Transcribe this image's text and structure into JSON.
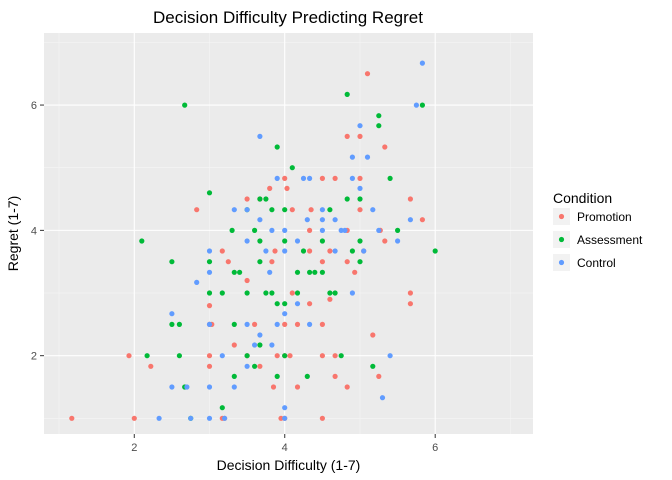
{
  "chart_data": {
    "type": "scatter",
    "title": "Decision Difficulty Predicting Regret",
    "xlabel": "Decision Difficulty (1-7)",
    "ylabel": "Regret (1-7)",
    "xlim": [
      0.8,
      7.3
    ],
    "ylim": [
      0.75,
      7.15
    ],
    "xticks": [
      2,
      4,
      6
    ],
    "yticks": [
      2,
      4,
      6
    ],
    "grid": true,
    "legend": {
      "title": "Condition",
      "position": "right"
    },
    "series": [
      {
        "name": "Promotion",
        "color": "#F8766D",
        "points": [
          [
            1.17,
            1.0
          ],
          [
            2.0,
            1.0
          ],
          [
            1.93,
            2.0
          ],
          [
            2.22,
            1.83
          ],
          [
            2.83,
            4.33
          ],
          [
            3.0,
            2.8
          ],
          [
            3.0,
            1.83
          ],
          [
            3.0,
            2.0
          ],
          [
            3.03,
            2.5
          ],
          [
            3.17,
            1.0
          ],
          [
            3.2,
            1.0
          ],
          [
            3.25,
            3.5
          ],
          [
            3.33,
            2.17
          ],
          [
            3.5,
            2.0
          ],
          [
            3.5,
            3.2
          ],
          [
            3.67,
            4.5
          ],
          [
            3.67,
            1.83
          ],
          [
            3.8,
            4.67
          ],
          [
            3.85,
            1.5
          ],
          [
            3.87,
            3.67
          ],
          [
            3.9,
            2.0
          ],
          [
            3.95,
            1.0
          ],
          [
            4.0,
            1.0
          ],
          [
            4.0,
            2.0
          ],
          [
            4.0,
            2.5
          ],
          [
            4.0,
            4.83
          ],
          [
            4.03,
            4.67
          ],
          [
            4.07,
            2.0
          ],
          [
            4.1,
            4.33
          ],
          [
            4.1,
            3.0
          ],
          [
            4.17,
            1.5
          ],
          [
            4.33,
            4.0
          ],
          [
            4.33,
            3.67
          ],
          [
            4.33,
            2.83
          ],
          [
            4.5,
            2.0
          ],
          [
            4.5,
            3.5
          ],
          [
            4.5,
            1.0
          ],
          [
            4.5,
            4.83
          ],
          [
            4.6,
            3.67
          ],
          [
            4.67,
            1.67
          ],
          [
            4.67,
            4.83
          ],
          [
            4.67,
            2.0
          ],
          [
            4.83,
            3.5
          ],
          [
            4.83,
            1.5
          ],
          [
            4.83,
            4.0
          ],
          [
            4.83,
            5.5
          ],
          [
            4.93,
            3.33
          ],
          [
            5.0,
            4.83
          ],
          [
            5.0,
            4.33
          ],
          [
            5.0,
            5.5
          ],
          [
            5.05,
            3.67
          ],
          [
            5.1,
            6.5
          ],
          [
            5.17,
            2.33
          ],
          [
            5.25,
            1.67
          ],
          [
            5.33,
            3.83
          ],
          [
            5.33,
            5.33
          ],
          [
            5.67,
            3.0
          ],
          [
            5.67,
            2.83
          ],
          [
            5.83,
            4.17
          ],
          [
            5.67,
            4.5
          ],
          [
            3.5,
            4.5
          ],
          [
            3.17,
            3.67
          ],
          [
            3.0,
            2.5
          ],
          [
            3.83,
            3.5
          ],
          [
            4.35,
            4.33
          ],
          [
            4.6,
            2.9
          ],
          [
            5.27,
            4.0
          ],
          [
            3.6,
            2.5
          ],
          [
            4.17,
            2.5
          ],
          [
            4.5,
            2.5
          ]
        ]
      },
      {
        "name": "Assessment",
        "color": "#00BA38",
        "points": [
          [
            2.1,
            3.83
          ],
          [
            2.17,
            2.0
          ],
          [
            2.5,
            3.5
          ],
          [
            2.6,
            2.5
          ],
          [
            2.6,
            2.0
          ],
          [
            2.67,
            6.0
          ],
          [
            2.67,
            1.5
          ],
          [
            2.75,
            1.0
          ],
          [
            3.0,
            4.6
          ],
          [
            3.0,
            3.0
          ],
          [
            3.17,
            3.0
          ],
          [
            3.17,
            1.17
          ],
          [
            3.33,
            3.33
          ],
          [
            3.33,
            2.5
          ],
          [
            3.33,
            1.67
          ],
          [
            3.4,
            3.33
          ],
          [
            3.5,
            3.0
          ],
          [
            3.5,
            4.33
          ],
          [
            3.6,
            4.0
          ],
          [
            3.67,
            4.5
          ],
          [
            3.67,
            3.83
          ],
          [
            3.67,
            3.5
          ],
          [
            3.67,
            2.17
          ],
          [
            3.75,
            4.5
          ],
          [
            3.83,
            3.0
          ],
          [
            3.83,
            4.33
          ],
          [
            3.9,
            5.33
          ],
          [
            3.9,
            2.83
          ],
          [
            3.9,
            1.67
          ],
          [
            4.0,
            2.83
          ],
          [
            4.0,
            3.83
          ],
          [
            4.0,
            4.33
          ],
          [
            4.1,
            5.0
          ],
          [
            4.17,
            3.33
          ],
          [
            4.17,
            3.0
          ],
          [
            4.25,
            3.67
          ],
          [
            4.3,
            1.67
          ],
          [
            4.33,
            3.33
          ],
          [
            4.4,
            3.33
          ],
          [
            4.5,
            3.83
          ],
          [
            4.5,
            3.33
          ],
          [
            4.6,
            4.33
          ],
          [
            4.67,
            3.0
          ],
          [
            4.83,
            4.5
          ],
          [
            4.83,
            6.17
          ],
          [
            4.9,
            3.67
          ],
          [
            5.0,
            3.83
          ],
          [
            5.0,
            4.5
          ],
          [
            5.17,
            1.83
          ],
          [
            5.25,
            5.83
          ],
          [
            5.25,
            5.67
          ],
          [
            5.4,
            4.83
          ],
          [
            5.5,
            4.0
          ],
          [
            6.0,
            3.67
          ],
          [
            5.83,
            6.0
          ],
          [
            5.0,
            3.5
          ],
          [
            4.75,
            2.0
          ],
          [
            3.6,
            1.83
          ],
          [
            2.5,
            2.5
          ],
          [
            3.0,
            3.5
          ],
          [
            3.75,
            3.0
          ],
          [
            4.0,
            2.0
          ],
          [
            3.3,
            4.0
          ],
          [
            4.6,
            3.0
          ],
          [
            3.5,
            2.0
          ]
        ]
      },
      {
        "name": "Control",
        "color": "#619CFF",
        "points": [
          [
            2.33,
            1.0
          ],
          [
            2.5,
            1.5
          ],
          [
            2.5,
            2.67
          ],
          [
            2.75,
            1.0
          ],
          [
            2.83,
            3.17
          ],
          [
            3.0,
            1.5
          ],
          [
            3.0,
            3.67
          ],
          [
            3.0,
            2.5
          ],
          [
            3.0,
            1.0
          ],
          [
            3.17,
            2.0
          ],
          [
            3.33,
            4.33
          ],
          [
            3.33,
            1.5
          ],
          [
            3.5,
            4.33
          ],
          [
            3.5,
            1.83
          ],
          [
            3.5,
            2.5
          ],
          [
            3.6,
            2.17
          ],
          [
            3.67,
            2.33
          ],
          [
            3.67,
            4.17
          ],
          [
            3.67,
            5.5
          ],
          [
            3.75,
            3.67
          ],
          [
            3.83,
            4.0
          ],
          [
            3.83,
            2.17
          ],
          [
            3.9,
            2.5
          ],
          [
            3.9,
            4.83
          ],
          [
            4.0,
            1.17
          ],
          [
            4.0,
            3.67
          ],
          [
            4.0,
            4.0
          ],
          [
            4.17,
            2.83
          ],
          [
            4.17,
            3.83
          ],
          [
            4.25,
            4.83
          ],
          [
            4.33,
            4.83
          ],
          [
            4.33,
            2.5
          ],
          [
            4.5,
            4.17
          ],
          [
            4.5,
            4.33
          ],
          [
            4.67,
            3.67
          ],
          [
            4.67,
            4.17
          ],
          [
            4.75,
            4.0
          ],
          [
            4.9,
            5.17
          ],
          [
            4.9,
            4.83
          ],
          [
            5.0,
            5.67
          ],
          [
            5.05,
            3.67
          ],
          [
            5.1,
            5.17
          ],
          [
            5.25,
            4.0
          ],
          [
            5.3,
            1.33
          ],
          [
            5.4,
            2.0
          ],
          [
            5.5,
            3.83
          ],
          [
            5.67,
            4.17
          ],
          [
            5.75,
            6.0
          ],
          [
            5.83,
            6.67
          ],
          [
            3.2,
            1.0
          ],
          [
            2.7,
            1.5
          ],
          [
            4.0,
            1.0
          ],
          [
            4.5,
            4.0
          ],
          [
            5.0,
            4.67
          ],
          [
            3.8,
            3.33
          ],
          [
            4.9,
            3.0
          ],
          [
            3.0,
            3.33
          ],
          [
            4.3,
            4.17
          ],
          [
            4.8,
            4.0
          ],
          [
            5.17,
            4.33
          ],
          [
            3.5,
            3.83
          ],
          [
            4.0,
            2.67
          ]
        ]
      }
    ]
  }
}
